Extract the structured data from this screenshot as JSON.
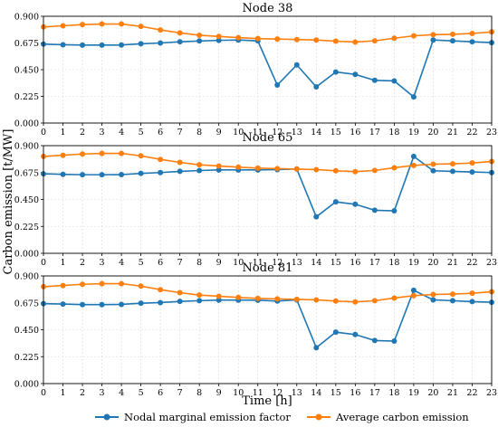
{
  "chart_data": {
    "type": "line",
    "ylabel": "Carbon emission [t/MW]",
    "xlabel": "Time [h]",
    "x": [
      0,
      1,
      2,
      3,
      4,
      5,
      6,
      7,
      8,
      9,
      10,
      11,
      12,
      13,
      14,
      15,
      16,
      17,
      18,
      19,
      20,
      21,
      22,
      23
    ],
    "xticks": [
      "0",
      "1",
      "2",
      "3",
      "4",
      "5",
      "6",
      "7",
      "8",
      "9",
      "10",
      "11",
      "12",
      "13",
      "14",
      "15",
      "16",
      "17",
      "18",
      "19",
      "20",
      "21",
      "22",
      "23"
    ],
    "ylim": [
      0,
      0.9
    ],
    "yticks": [
      "0.000",
      "0.225",
      "0.450",
      "0.675",
      "0.900"
    ],
    "grid": true,
    "legend": {
      "placement": "bottom",
      "entries": [
        "Nodal marginal emission factor",
        "Average carbon emission"
      ]
    },
    "colors": {
      "nodal": "#1f77b4",
      "average": "#ff7f0e"
    },
    "panels": [
      {
        "title": "Node 38",
        "series": [
          {
            "name": "Nodal marginal emission factor",
            "values": [
              0.665,
              0.66,
              0.657,
              0.657,
              0.658,
              0.668,
              0.675,
              0.685,
              0.692,
              0.697,
              0.7,
              0.693,
              0.32,
              0.49,
              0.305,
              0.43,
              0.41,
              0.36,
              0.355,
              0.22,
              0.7,
              0.693,
              0.685,
              0.678
            ]
          },
          {
            "name": "Average carbon emission",
            "values": [
              0.81,
              0.82,
              0.83,
              0.835,
              0.835,
              0.815,
              0.785,
              0.76,
              0.74,
              0.73,
              0.72,
              0.712,
              0.708,
              0.704,
              0.7,
              0.69,
              0.683,
              0.693,
              0.715,
              0.735,
              0.745,
              0.748,
              0.755,
              0.768
            ]
          }
        ]
      },
      {
        "title": "Node 65",
        "series": [
          {
            "name": "Nodal marginal emission factor",
            "values": [
              0.665,
              0.66,
              0.657,
              0.657,
              0.658,
              0.668,
              0.675,
              0.685,
              0.692,
              0.697,
              0.697,
              0.697,
              0.7,
              0.705,
              0.305,
              0.43,
              0.41,
              0.36,
              0.355,
              0.81,
              0.69,
              0.685,
              0.68,
              0.675
            ]
          },
          {
            "name": "Average carbon emission",
            "values": [
              0.81,
              0.82,
              0.83,
              0.835,
              0.835,
              0.815,
              0.785,
              0.76,
              0.74,
              0.73,
              0.72,
              0.712,
              0.708,
              0.704,
              0.7,
              0.69,
              0.683,
              0.693,
              0.715,
              0.735,
              0.745,
              0.748,
              0.755,
              0.768
            ]
          }
        ]
      },
      {
        "title": "Node 81",
        "series": [
          {
            "name": "Nodal marginal emission factor",
            "values": [
              0.668,
              0.665,
              0.66,
              0.66,
              0.662,
              0.672,
              0.677,
              0.687,
              0.693,
              0.698,
              0.698,
              0.697,
              0.69,
              0.7,
              0.3,
              0.43,
              0.41,
              0.36,
              0.355,
              0.78,
              0.7,
              0.693,
              0.685,
              0.68
            ]
          },
          {
            "name": "Average carbon emission",
            "values": [
              0.81,
              0.82,
              0.83,
              0.835,
              0.835,
              0.815,
              0.785,
              0.76,
              0.74,
              0.73,
              0.72,
              0.712,
              0.708,
              0.704,
              0.7,
              0.69,
              0.683,
              0.693,
              0.715,
              0.735,
              0.745,
              0.748,
              0.755,
              0.768
            ]
          }
        ]
      }
    ]
  }
}
